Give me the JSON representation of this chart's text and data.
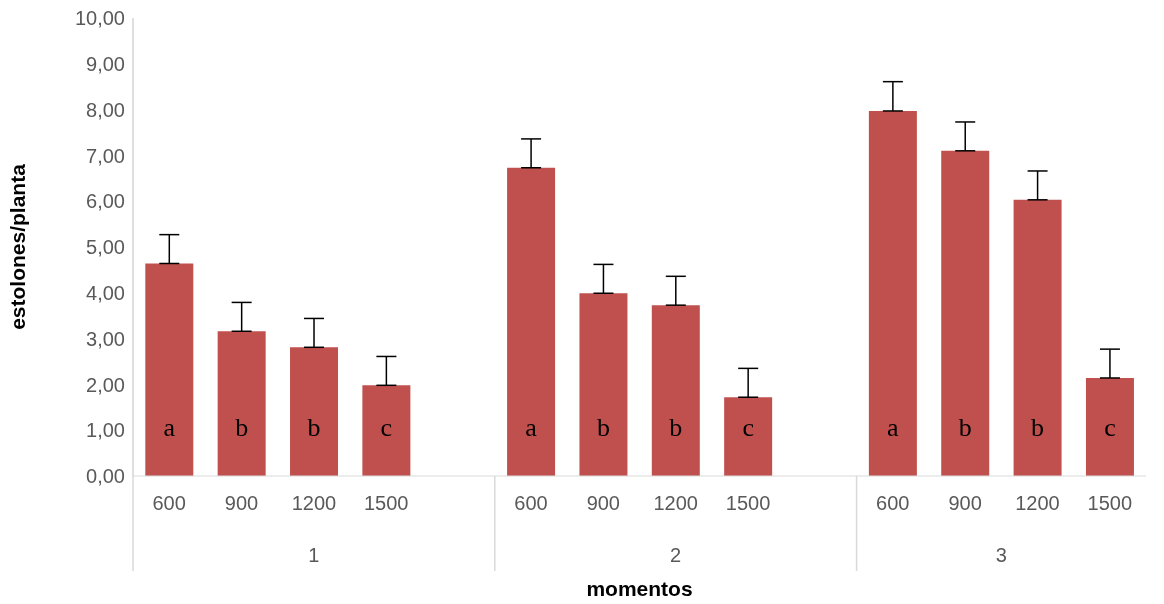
{
  "chart_data": {
    "type": "bar",
    "xlabel": "momentos",
    "ylabel": "estolones/planta",
    "categories": [
      "600",
      "900",
      "1200",
      "1500",
      null,
      "600",
      "900",
      "1200",
      "1500",
      null,
      "600",
      "900",
      "1200",
      "1500"
    ],
    "values": [
      4.64,
      3.16,
      2.81,
      1.98,
      null,
      6.73,
      3.99,
      3.73,
      1.72,
      null,
      7.97,
      7.1,
      6.03,
      2.14
    ],
    "errors": [
      [
        4.64,
        5.27
      ],
      [
        3.16,
        3.79
      ],
      [
        2.81,
        3.44
      ],
      [
        1.98,
        2.61
      ],
      null,
      [
        6.73,
        7.36
      ],
      [
        3.99,
        4.62
      ],
      [
        3.73,
        4.36
      ],
      [
        1.72,
        2.35
      ],
      null,
      [
        7.97,
        8.61
      ],
      [
        7.1,
        7.73
      ],
      [
        6.03,
        6.66
      ],
      [
        2.14,
        2.77
      ]
    ],
    "value_labels": [
      "a",
      "b",
      "b",
      "c",
      null,
      "a",
      "b",
      "b",
      "c",
      null,
      "a",
      "b",
      "b",
      "c"
    ],
    "color": "#c0504d",
    "annotations": [
      "1",
      "2",
      "3"
    ],
    "ylim": [
      0,
      10
    ],
    "yticks": [
      {
        "value": 0,
        "label": "0,00"
      },
      {
        "value": 1,
        "label": "1,00"
      },
      {
        "value": 2,
        "label": "2,00"
      },
      {
        "value": 3,
        "label": "3,00"
      },
      {
        "value": 4,
        "label": "4,00"
      },
      {
        "value": 5,
        "label": "5,00"
      },
      {
        "value": 6,
        "label": "6,00"
      },
      {
        "value": 7,
        "label": "7,00"
      },
      {
        "value": 8,
        "label": "8,00"
      },
      {
        "value": 9,
        "label": "9,00"
      },
      {
        "value": 10,
        "label": "10,00"
      }
    ],
    "grid": false,
    "legend": false
  }
}
